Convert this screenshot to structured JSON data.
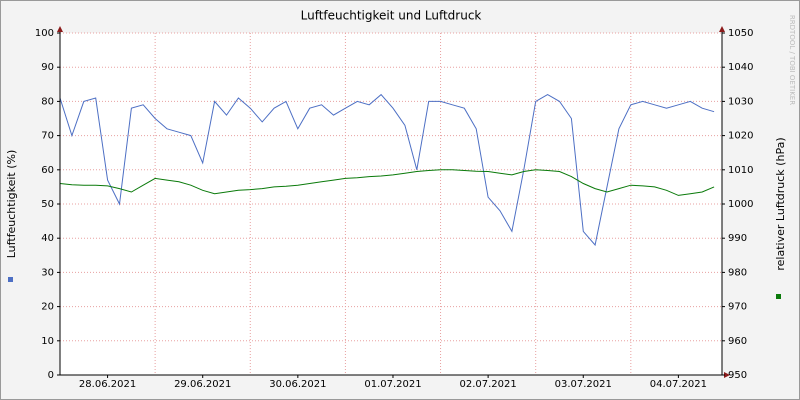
{
  "chart_data": {
    "type": "line",
    "title": "Luftfeuchtigkeit und Luftdruck",
    "ylabel": "Luftfeuchtigkeit (%)",
    "y2label": "relativer Luftdruck (hPa)",
    "watermark": "RRDTOOL / TOBI OETIKER",
    "x": [
      0,
      3,
      6,
      9,
      12,
      15,
      18,
      21,
      24,
      27,
      30,
      33,
      36,
      39,
      42,
      45,
      48,
      51,
      54,
      57,
      60,
      63,
      66,
      69,
      72,
      75,
      78,
      81,
      84,
      87,
      90,
      93,
      96,
      99,
      102,
      105,
      108,
      111,
      114,
      117,
      120,
      123,
      126,
      129,
      132,
      135,
      138,
      141,
      144,
      147,
      150,
      153,
      156,
      159,
      162,
      165
    ],
    "xlim": [
      0,
      167
    ],
    "xticks": [
      {
        "value": 12,
        "label": "28.06.2021"
      },
      {
        "value": 36,
        "label": "29.06.2021"
      },
      {
        "value": 60,
        "label": "30.06.2021"
      },
      {
        "value": 84,
        "label": "01.07.2021"
      },
      {
        "value": 108,
        "label": "02.07.2021"
      },
      {
        "value": 132,
        "label": "03.07.2021"
      },
      {
        "value": 156,
        "label": "04.07.2021"
      }
    ],
    "xgrid": [
      24,
      48,
      72,
      96,
      120,
      144
    ],
    "ylim": [
      0,
      100
    ],
    "yticks": [
      0,
      10,
      20,
      30,
      40,
      50,
      60,
      70,
      80,
      90,
      100
    ],
    "y2lim": [
      950,
      1050
    ],
    "y2ticks": [
      950,
      960,
      970,
      980,
      990,
      1000,
      1010,
      1020,
      1030,
      1040,
      1050
    ],
    "grid": true,
    "series": [
      {
        "color": "#4d6fc4",
        "values": [
          81,
          70,
          80,
          81,
          57,
          50,
          78,
          79,
          75,
          72,
          71,
          70,
          62,
          80,
          76,
          81,
          78,
          74,
          78,
          80,
          72,
          78,
          79,
          76,
          78,
          80,
          79,
          82,
          78,
          73,
          60,
          80,
          80,
          79,
          78,
          72,
          52,
          48,
          42,
          60,
          80,
          82,
          80,
          75,
          42,
          38,
          55,
          72,
          79,
          80,
          79,
          78,
          79,
          80,
          78,
          77
        ]
      },
      {
        "color": "#0a7a0a",
        "axis": "y2",
        "values": [
          1006,
          1005.6,
          1005.5,
          1005.5,
          1005.3,
          1004.5,
          1003.5,
          1005.5,
          1007.5,
          1007,
          1006.5,
          1005.5,
          1004,
          1003,
          1003.5,
          1004,
          1004.2,
          1004.5,
          1005,
          1005.2,
          1005.5,
          1006,
          1006.5,
          1007,
          1007.5,
          1007.7,
          1008,
          1008.2,
          1008.5,
          1009,
          1009.5,
          1009.8,
          1010,
          1010,
          1009.8,
          1009.6,
          1009.5,
          1009,
          1008.5,
          1009.5,
          1010,
          1009.8,
          1009.5,
          1008,
          1006,
          1004.5,
          1003.5,
          1004.5,
          1005.5,
          1005.3,
          1005,
          1004,
          1002.5,
          1003,
          1003.5,
          1005
        ]
      }
    ]
  }
}
